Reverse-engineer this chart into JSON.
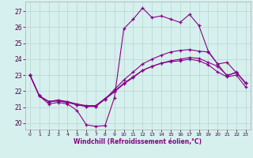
{
  "xlabel": "Windchill (Refroidissement éolien,°C)",
  "ylabel": "",
  "xlim": [
    -0.5,
    23.5
  ],
  "ylim": [
    19.6,
    27.6
  ],
  "yticks": [
    20,
    21,
    22,
    23,
    24,
    25,
    26,
    27
  ],
  "xticks": [
    0,
    1,
    2,
    3,
    4,
    5,
    6,
    7,
    8,
    9,
    10,
    11,
    12,
    13,
    14,
    15,
    16,
    17,
    18,
    19,
    20,
    21,
    22,
    23
  ],
  "background_color": "#d6f0ee",
  "grid_color": "#b8d4d0",
  "line_color": "#880088",
  "lines": [
    [
      23.0,
      21.7,
      21.2,
      21.3,
      21.2,
      20.8,
      19.9,
      19.8,
      19.85,
      21.6,
      25.9,
      26.5,
      27.2,
      26.6,
      26.7,
      26.5,
      26.3,
      26.8,
      26.1,
      24.5,
      23.7,
      22.95,
      23.2,
      22.5
    ],
    [
      23.0,
      21.7,
      21.35,
      21.4,
      21.3,
      21.15,
      21.05,
      21.05,
      21.5,
      22.1,
      22.7,
      23.2,
      23.7,
      24.0,
      24.25,
      24.45,
      24.55,
      24.6,
      24.5,
      24.45,
      23.7,
      23.8,
      23.15,
      22.5
    ],
    [
      23.0,
      21.7,
      21.35,
      21.4,
      21.3,
      21.15,
      21.05,
      21.05,
      21.5,
      21.95,
      22.45,
      22.85,
      23.3,
      23.55,
      23.75,
      23.9,
      24.0,
      24.1,
      24.05,
      23.8,
      23.55,
      23.0,
      23.15,
      22.5
    ],
    [
      23.0,
      21.7,
      21.35,
      21.45,
      21.35,
      21.2,
      21.1,
      21.1,
      21.55,
      22.0,
      22.5,
      22.9,
      23.3,
      23.55,
      23.75,
      23.85,
      23.9,
      24.0,
      23.9,
      23.65,
      23.2,
      22.9,
      23.0,
      22.25
    ]
  ]
}
